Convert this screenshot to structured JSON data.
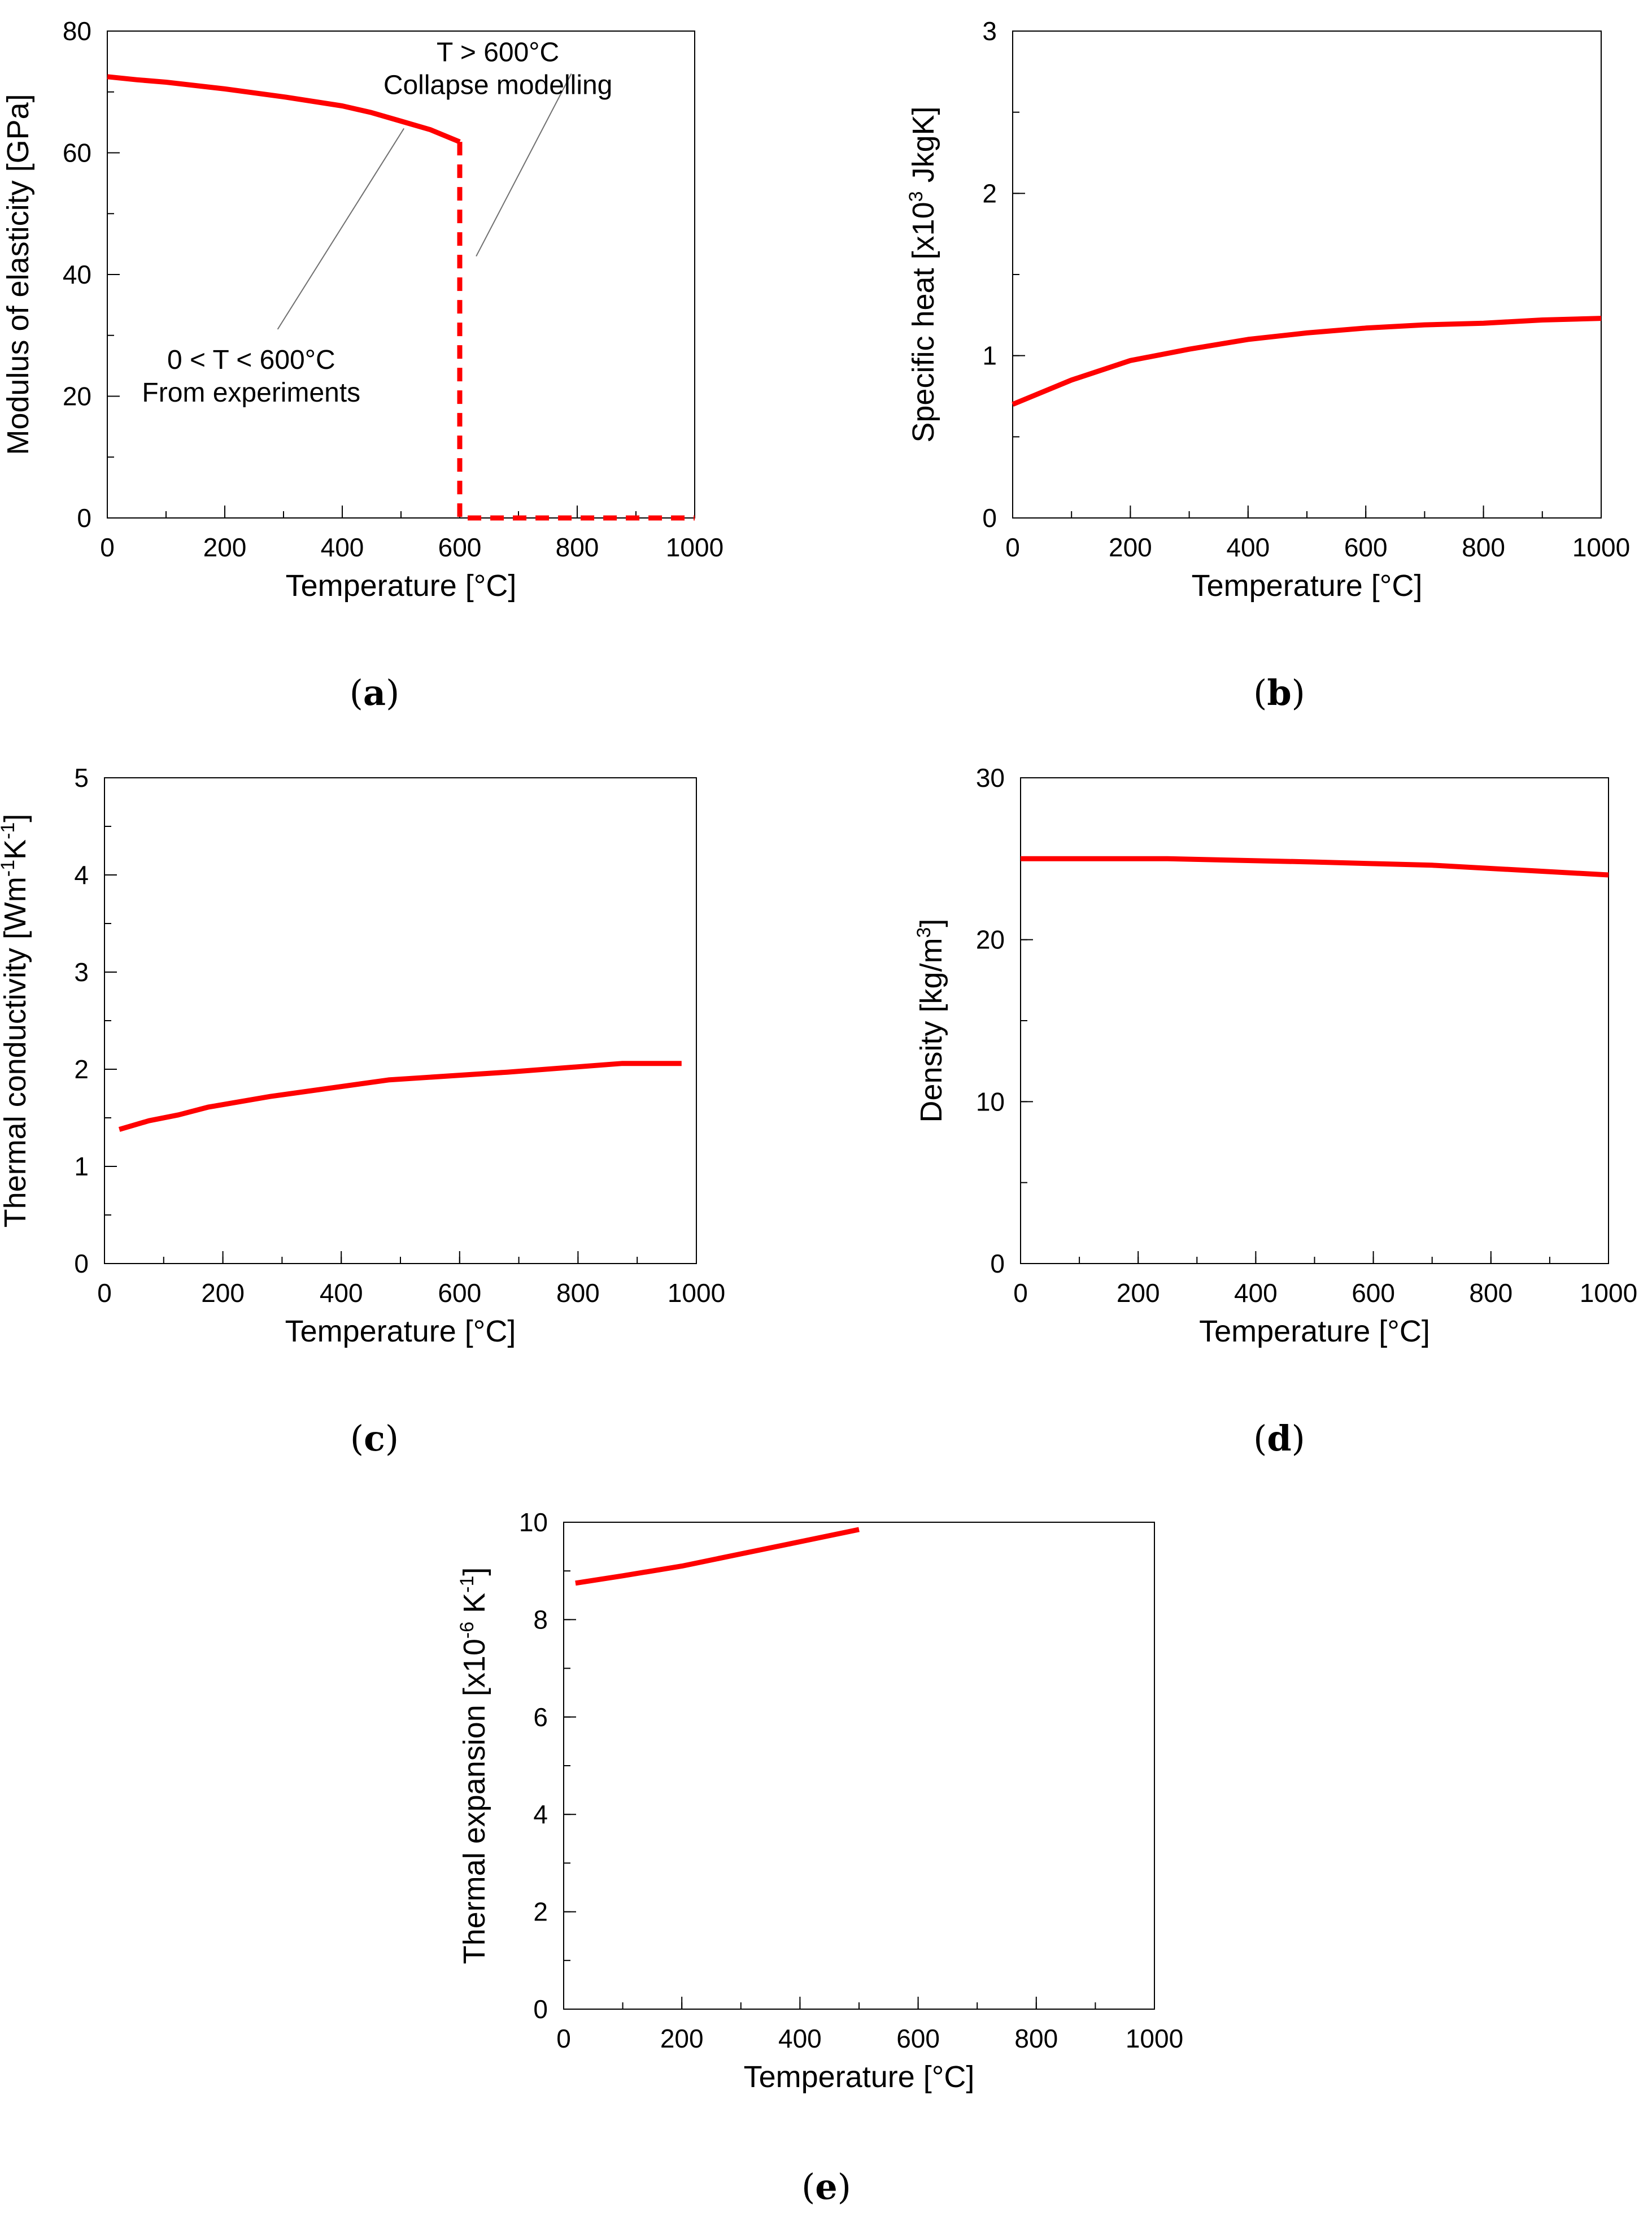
{
  "colors": {
    "series": "#ff0000",
    "axis": "#000000",
    "annotation": "#707070"
  },
  "chart_data": [
    {
      "id": "a",
      "type": "line",
      "panel_label": "a",
      "xlabel": "Temperature [°C]",
      "ylabel": "Modulus of elasticity  [GPa]",
      "xlim": [
        0,
        1000
      ],
      "ylim": [
        0,
        80
      ],
      "xticks": [
        0,
        200,
        400,
        600,
        800,
        1000
      ],
      "yticks": [
        0,
        20,
        40,
        60,
        80
      ],
      "xminor": 100,
      "yminor": 10,
      "series": [
        {
          "name": "From experiments",
          "style": "solid",
          "x": [
            0,
            50,
            100,
            200,
            300,
            400,
            450,
            500,
            550,
            600
          ],
          "y": [
            72.5,
            72,
            71.6,
            70.5,
            69.2,
            67.7,
            66.6,
            65.2,
            63.8,
            61.8
          ]
        },
        {
          "name": "Collapse modelling",
          "style": "dashed",
          "x": [
            600,
            600,
            1000
          ],
          "y": [
            61.8,
            0,
            0
          ]
        }
      ],
      "annotations": [
        {
          "lines": [
            "T > 600°C",
            "Collapse modelling"
          ],
          "anchor": [
            805,
            63
          ],
          "text_at": [
            665,
            76.5
          ],
          "leader_from": [
            790,
            73
          ],
          "leader_to": [
            628,
            43
          ]
        },
        {
          "lines": [
            "0 < T < 600°C",
            "From experiments"
          ],
          "anchor": [
            245,
            28
          ],
          "text_at": [
            245,
            26
          ],
          "leader_from": [
            290,
            31
          ],
          "leader_to": [
            505,
            64
          ]
        }
      ]
    },
    {
      "id": "b",
      "type": "line",
      "panel_label": "b",
      "xlabel": "Temperature [°C]",
      "ylabel_parts": [
        "Specific heat  [x10",
        "3",
        " JkgK]"
      ],
      "xlim": [
        0,
        1000
      ],
      "ylim": [
        0,
        3
      ],
      "xticks": [
        0,
        200,
        400,
        600,
        800,
        1000
      ],
      "yticks": [
        0,
        1,
        2,
        3
      ],
      "xminor": 100,
      "yminor": 0.5,
      "series": [
        {
          "name": "Specific heat",
          "style": "solid",
          "x": [
            0,
            100,
            200,
            300,
            400,
            500,
            600,
            700,
            800,
            900,
            1000
          ],
          "y": [
            0.7,
            0.85,
            0.97,
            1.04,
            1.1,
            1.14,
            1.17,
            1.19,
            1.2,
            1.22,
            1.23
          ]
        }
      ]
    },
    {
      "id": "c",
      "type": "line",
      "panel_label": "c",
      "xlabel": "Temperature [°C]",
      "ylabel_parts": [
        "Thermal conductivity  [Wm",
        "-1",
        "K",
        "-1",
        "]"
      ],
      "xlim": [
        0,
        1000
      ],
      "ylim": [
        0,
        5
      ],
      "xticks": [
        0,
        200,
        400,
        600,
        800,
        1000
      ],
      "yticks": [
        0,
        1,
        2,
        3,
        4,
        5
      ],
      "xminor": 100,
      "yminor": 0.5,
      "series": [
        {
          "name": "Thermal conductivity",
          "style": "solid",
          "x": [
            25,
            75,
            125,
            175,
            280,
            480,
            680,
            875,
            975
          ],
          "y": [
            1.38,
            1.47,
            1.53,
            1.61,
            1.72,
            1.89,
            1.97,
            2.06,
            2.06
          ]
        }
      ]
    },
    {
      "id": "d",
      "type": "line",
      "panel_label": "d",
      "xlabel": "Temperature [°C]",
      "ylabel_parts": [
        "Density  [kg/m",
        "3",
        "]"
      ],
      "xlim": [
        0,
        1000
      ],
      "ylim": [
        0,
        30
      ],
      "xticks": [
        0,
        200,
        400,
        600,
        800,
        1000
      ],
      "yticks": [
        0,
        10,
        20,
        30
      ],
      "xminor": 100,
      "yminor": 5,
      "series": [
        {
          "name": "Density",
          "style": "solid",
          "x": [
            0,
            250,
            500,
            700,
            850,
            1000
          ],
          "y": [
            25,
            25,
            24.8,
            24.6,
            24.3,
            24
          ]
        }
      ]
    },
    {
      "id": "e",
      "type": "line",
      "panel_label": "e",
      "xlabel": "Temperature [°C]",
      "ylabel_parts": [
        "Thermal expansion  [x10",
        "-6",
        " K",
        "-1",
        "]"
      ],
      "xlim": [
        0,
        1000
      ],
      "ylim": [
        0,
        10
      ],
      "xticks": [
        0,
        200,
        400,
        600,
        800,
        1000
      ],
      "yticks": [
        0,
        2,
        4,
        6,
        8,
        10
      ],
      "xminor": 100,
      "yminor": 1,
      "series": [
        {
          "name": "Thermal expansion",
          "style": "solid",
          "x": [
            20,
            100,
            200,
            300,
            400,
            500
          ],
          "y": [
            8.75,
            8.9,
            9.1,
            9.35,
            9.6,
            9.85
          ]
        }
      ]
    }
  ]
}
